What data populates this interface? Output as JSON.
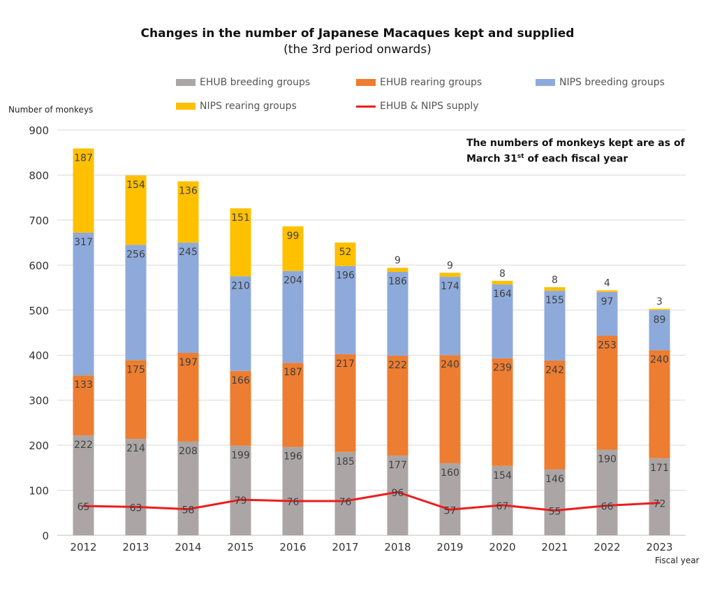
{
  "chart_data": {
    "type": "bar",
    "stacked": true,
    "title": "Changes in the number of Japanese Macaques kept and supplied",
    "subtitle": "(the 3rd period onwards)",
    "xlabel": "Fiscal year",
    "ylabel": "Number of monkeys",
    "ylim": [
      0,
      900
    ],
    "yticks": [
      0,
      100,
      200,
      300,
      400,
      500,
      600,
      700,
      800,
      900
    ],
    "grid": true,
    "legend_position": "top",
    "note_line1": "The numbers of monkeys kept are as of",
    "note_line2_prefix": "March 31",
    "note_line2_sup": "st",
    "note_line2_suffix": " of each fiscal year",
    "categories": [
      "2012",
      "2013",
      "2014",
      "2015",
      "2016",
      "2017",
      "2018",
      "2019",
      "2020",
      "2021",
      "2022",
      "2023"
    ],
    "series": [
      {
        "name": "EHUB breeding groups",
        "color": "#aba6a5",
        "values": [
          222,
          214,
          208,
          199,
          196,
          185,
          177,
          160,
          154,
          146,
          190,
          171
        ]
      },
      {
        "name": "EHUB rearing groups",
        "color": "#ed7d31",
        "values": [
          133,
          175,
          197,
          166,
          187,
          217,
          222,
          240,
          239,
          242,
          253,
          240
        ]
      },
      {
        "name": "NIPS breeding groups",
        "color": "#8eaadb",
        "values": [
          317,
          256,
          245,
          210,
          204,
          196,
          186,
          174,
          164,
          155,
          97,
          89
        ]
      },
      {
        "name": "NIPS rearing groups",
        "color": "#ffc000",
        "values": [
          187,
          154,
          136,
          151,
          99,
          52,
          9,
          9,
          8,
          8,
          4,
          3
        ]
      }
    ],
    "line_series": {
      "name": "EHUB & NIPS supply",
      "color": "#ee1c1c",
      "values": [
        65,
        63,
        58,
        79,
        76,
        76,
        96,
        57,
        67,
        55,
        66,
        72
      ]
    }
  }
}
